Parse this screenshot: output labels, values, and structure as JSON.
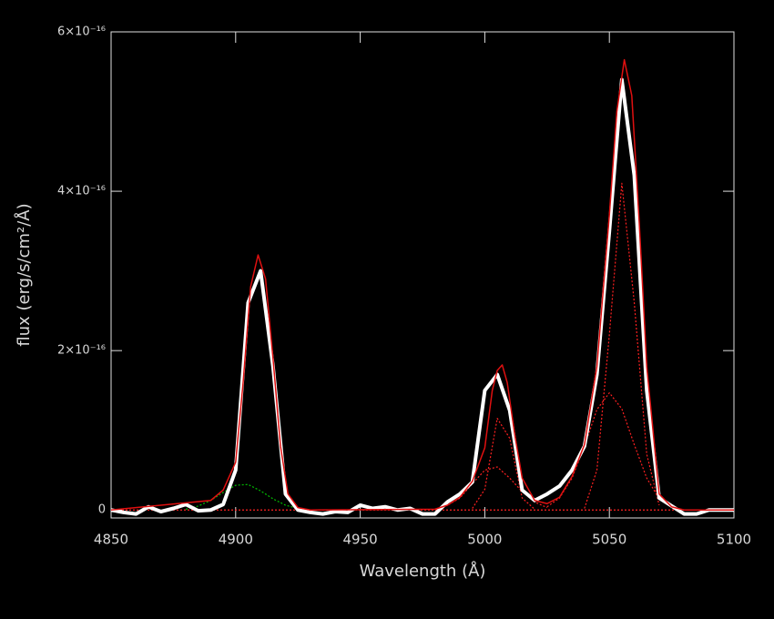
{
  "chart_data": {
    "type": "line",
    "x_label": "Wavelength (Å)",
    "y_label": "flux (erg/s/cm²/Å)",
    "xlim": [
      4850,
      5100
    ],
    "xticks": [
      4850,
      4900,
      4950,
      5000,
      5050,
      5100
    ],
    "ylim": [
      -1e-17,
      6e-16
    ],
    "yticks": [
      0,
      {
        "value": 2e-16,
        "label": "2×10⁻¹⁶"
      },
      {
        "value": 4e-16,
        "label": "4×10⁻¹⁶"
      },
      {
        "value": 6e-16,
        "label": "6×10⁻¹⁶"
      }
    ],
    "series": [
      {
        "color": "#ff2020",
        "dash": true,
        "x": [
          4850,
          5100
        ],
        "values": [
          0,
          0
        ]
      },
      {
        "color": "#00c000",
        "dash": true,
        "x": [
          4880,
          4885,
          4890,
          4895,
          4900,
          4905,
          4910,
          4915,
          4920,
          4925
        ],
        "values": [
          1e-18,
          5e-18,
          1.2e-17,
          2.2e-17,
          3.1e-17,
          3.2e-17,
          2.4e-17,
          1.4e-17,
          6e-18,
          2e-18
        ]
      },
      {
        "color": "#ff2020",
        "dash": true,
        "x": [
          4980,
          4985,
          4990,
          4995,
          5000,
          5005,
          5010,
          5015,
          5020,
          5025
        ],
        "values": [
          1e-18,
          6e-18,
          1.5e-17,
          3.3e-17,
          5e-17,
          5.4e-17,
          4e-17,
          2.3e-17,
          1e-17,
          3e-18
        ]
      },
      {
        "color": "#ff2020",
        "dash": true,
        "x": [
          4995,
          5000,
          5005,
          5010,
          5015,
          5020
        ],
        "values": [
          2e-18,
          2.6e-17,
          1.15e-16,
          9e-17,
          1.5e-17,
          1e-18
        ]
      },
      {
        "color": "#ff2020",
        "dash": true,
        "x": [
          5025,
          5030,
          5035,
          5040,
          5045,
          5050,
          5055,
          5060,
          5065,
          5070,
          5075
        ],
        "values": [
          4e-18,
          1.5e-17,
          4e-17,
          8e-17,
          1.26e-16,
          1.47e-16,
          1.27e-16,
          8.2e-17,
          4e-17,
          1.4e-17,
          4e-18
        ]
      },
      {
        "color": "#ff2020",
        "dash": true,
        "x": [
          5040,
          5045,
          5050,
          5055,
          5060,
          5065,
          5070
        ],
        "values": [
          2e-18,
          5e-17,
          2.2e-16,
          4.1e-16,
          2.6e-16,
          7e-17,
          6e-18
        ]
      },
      {
        "color": "#ffffff",
        "width": 4,
        "x": [
          4850,
          4855,
          4860,
          4865,
          4870,
          4875,
          4880,
          4885,
          4890,
          4895,
          4900,
          4905,
          4910,
          4915,
          4920,
          4925,
          4930,
          4935,
          4940,
          4945,
          4950,
          4955,
          4960,
          4965,
          4970,
          4975,
          4980,
          4985,
          4990,
          4995,
          5000,
          5005,
          5010,
          5015,
          5020,
          5025,
          5030,
          5035,
          5040,
          5045,
          5050,
          5055,
          5060,
          5065,
          5070,
          5075,
          5080,
          5085,
          5090,
          5095,
          5100
        ],
        "values": [
          0,
          -3e-18,
          -5e-18,
          4e-18,
          -2e-18,
          2e-18,
          7e-18,
          -1e-18,
          0,
          7e-18,
          5e-17,
          2.6e-16,
          3e-16,
          1.8e-16,
          2e-17,
          0,
          -3e-18,
          -5e-18,
          -2e-18,
          -3e-18,
          6e-18,
          2e-18,
          4e-18,
          0,
          2e-18,
          -5e-18,
          -5e-18,
          1e-17,
          2e-17,
          3.5e-17,
          1.5e-16,
          1.7e-16,
          1.25e-16,
          2.5e-17,
          1.2e-17,
          2e-17,
          3e-17,
          5e-17,
          8e-17,
          1.7e-16,
          3.5e-16,
          5.4e-16,
          4.2e-16,
          1.5e-16,
          1.5e-17,
          5e-18,
          -5e-18,
          -5e-18,
          0,
          0,
          0
        ]
      },
      {
        "color": "#e01010",
        "width": 1.5,
        "x": [
          4850,
          4890,
          4895,
          4900,
          4903,
          4906,
          4909,
          4912,
          4915,
          4918,
          4921,
          4925,
          4930,
          4980,
          4985,
          4990,
          4995,
          5000,
          5003,
          5005,
          5007,
          5009,
          5012,
          5015,
          5020,
          5025,
          5030,
          5035,
          5040,
          5045,
          5050,
          5053,
          5056,
          5059,
          5062,
          5065,
          5070,
          5075,
          5080,
          5100
        ],
        "values": [
          0,
          1.2e-17,
          2.5e-17,
          6e-17,
          1.6e-16,
          2.8e-16,
          3.2e-16,
          2.9e-16,
          1.9e-16,
          8e-17,
          2e-17,
          3e-18,
          0,
          1e-18,
          6e-18,
          1.6e-17,
          3.6e-17,
          7.8e-17,
          1.5e-16,
          1.75e-16,
          1.82e-16,
          1.6e-16,
          9.5e-17,
          4e-17,
          1.2e-17,
          8e-18,
          1.6e-17,
          4.2e-17,
          8.2e-17,
          1.8e-16,
          3.7e-16,
          5e-16,
          5.65e-16,
          5.2e-16,
          3.6e-16,
          1.8e-16,
          2e-17,
          4e-18,
          0,
          0
        ]
      }
    ]
  }
}
